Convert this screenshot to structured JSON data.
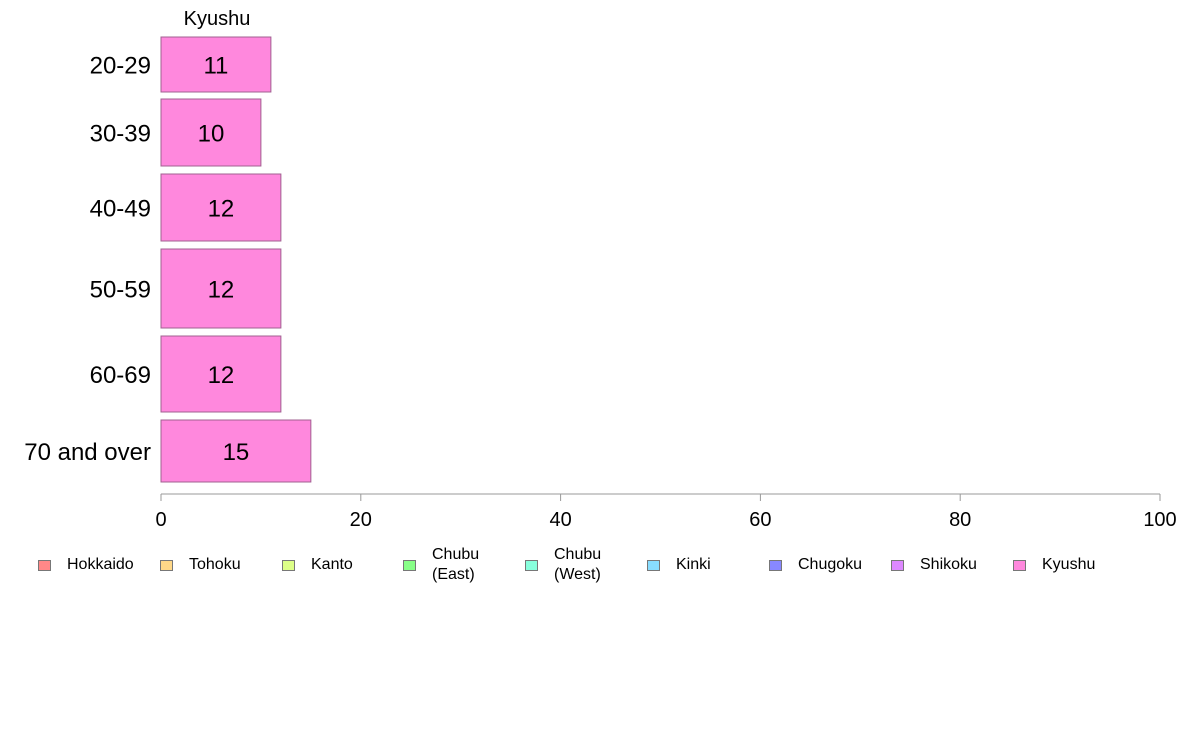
{
  "chart_data": {
    "type": "bar",
    "orientation": "horizontal",
    "title": "Kyushu",
    "categories": [
      "20-29",
      "30-39",
      "40-49",
      "50-59",
      "60-69",
      "70 and over"
    ],
    "series": [
      {
        "name": "Kyushu",
        "values": [
          11,
          10,
          12,
          12,
          12,
          15
        ],
        "labels": [
          "11",
          "10",
          "12",
          "12",
          "12",
          "15"
        ],
        "color": "#ff88dd"
      }
    ],
    "xlim": [
      0,
      100
    ],
    "xticks": [
      "0",
      "20",
      "40",
      "60",
      "80",
      "100"
    ],
    "grid": false,
    "legend_position": "bottom"
  },
  "legend": {
    "items": [
      {
        "label": "Hokkaido",
        "color": "#ff8888"
      },
      {
        "label": "Tohoku",
        "color": "#ffd888"
      },
      {
        "label": "Kanto",
        "color": "#ddff88"
      },
      {
        "label": "Chubu\n(East)",
        "color": "#88ff88"
      },
      {
        "label": "Chubu\n(West)",
        "color": "#88ffdd"
      },
      {
        "label": "Kinki",
        "color": "#88ddff"
      },
      {
        "label": "Chugoku",
        "color": "#8888ff"
      },
      {
        "label": "Shikoku",
        "color": "#dd88ff"
      },
      {
        "label": "Kyushu",
        "color": "#ff88dd"
      }
    ]
  }
}
